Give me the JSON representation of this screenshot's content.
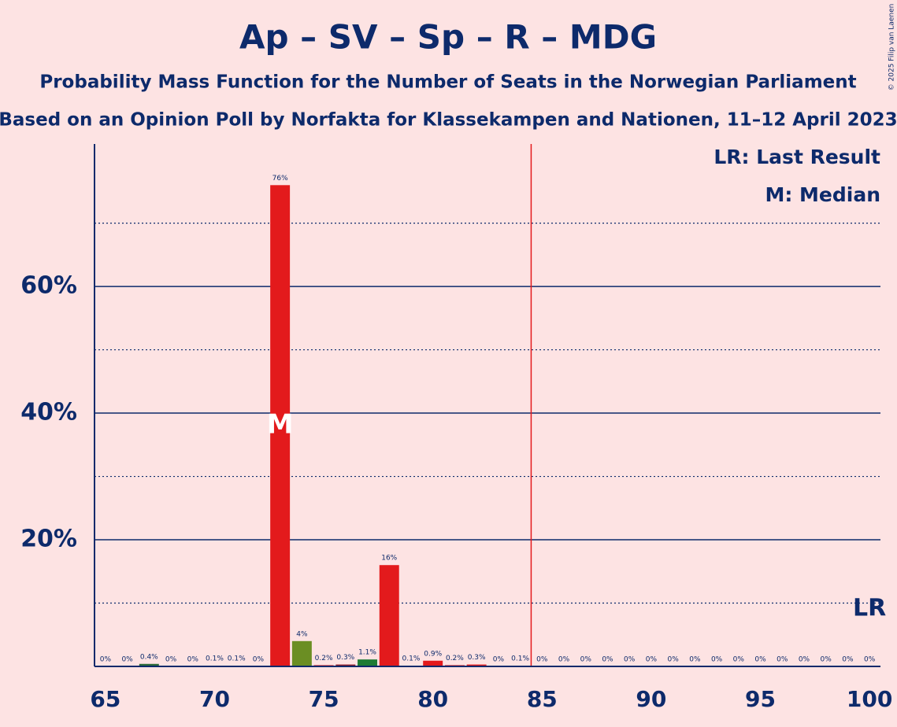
{
  "chart_data": {
    "type": "bar",
    "title": "Ap – SV – Sp – R – MDG",
    "subtitle": "Probability Mass Function for the Number of Seats in the Norwegian Parliament",
    "subtitle2": "Based on an Opinion Poll by Norfakta for Klassekampen and Nationen, 11–12 April 2023",
    "legend": [
      "LR: Last Result",
      "M: Median"
    ],
    "copyright": "© 2025 Filip van Laenen",
    "x": [
      65,
      66,
      67,
      68,
      69,
      70,
      71,
      72,
      73,
      74,
      75,
      76,
      77,
      78,
      79,
      80,
      81,
      82,
      83,
      84,
      85,
      86,
      87,
      88,
      89,
      90,
      91,
      92,
      93,
      94,
      95,
      96,
      97,
      98,
      99,
      100
    ],
    "values": [
      0,
      0,
      0.4,
      0,
      0,
      0.1,
      0.1,
      0,
      76,
      4,
      0.2,
      0.3,
      1.1,
      16,
      0.1,
      0.9,
      0.2,
      0.3,
      0,
      0.1,
      0,
      0,
      0,
      0,
      0,
      0,
      0,
      0,
      0,
      0,
      0,
      0,
      0,
      0,
      0,
      0
    ],
    "value_labels": [
      "0%",
      "0%",
      "0.4%",
      "0%",
      "0%",
      "0.1%",
      "0.1%",
      "0%",
      "76%",
      "4%",
      "0.2%",
      "0.3%",
      "1.1%",
      "16%",
      "0.1%",
      "0.9%",
      "0.2%",
      "0.3%",
      "0%",
      "0.1%",
      "0%",
      "0%",
      "0%",
      "0%",
      "0%",
      "0%",
      "0%",
      "0%",
      "0%",
      "0%",
      "0%",
      "0%",
      "0%",
      "0%",
      "0%",
      "0%"
    ],
    "colors": [
      "#e31a1c",
      "#e31a1c",
      "#2e6b3a",
      "#e31a1c",
      "#e31a1c",
      "#e31a1c",
      "#e31a1c",
      "#e31a1c",
      "#e31a1c",
      "#6b8e23",
      "#e31a1c",
      "#8b1a2b",
      "#1e7b34",
      "#e31a1c",
      "#e31a1c",
      "#e31a1c",
      "#e31a1c",
      "#e31a1c",
      "#e31a1c",
      "#e31a1c",
      "#e31a1c",
      "#e31a1c",
      "#e31a1c",
      "#e31a1c",
      "#e31a1c",
      "#e31a1c",
      "#e31a1c",
      "#e31a1c",
      "#e31a1c",
      "#e31a1c",
      "#e31a1c",
      "#e31a1c",
      "#e31a1c",
      "#e31a1c",
      "#e31a1c",
      "#e31a1c"
    ],
    "xlim": [
      64.5,
      100.5
    ],
    "xticks": [
      65,
      70,
      75,
      80,
      85,
      90,
      95,
      100
    ],
    "ylim": [
      0,
      82.5
    ],
    "yticks": [
      {
        "value": 20,
        "label": "20%"
      },
      {
        "value": 40,
        "label": "40%"
      },
      {
        "value": 60,
        "label": "60%"
      }
    ],
    "minor_yticks": [
      10,
      30,
      50,
      70
    ],
    "grid": true,
    "median": 73,
    "median_label": "M",
    "last_result": 100,
    "last_result_label": "LR",
    "threshold_x": 84.5
  }
}
